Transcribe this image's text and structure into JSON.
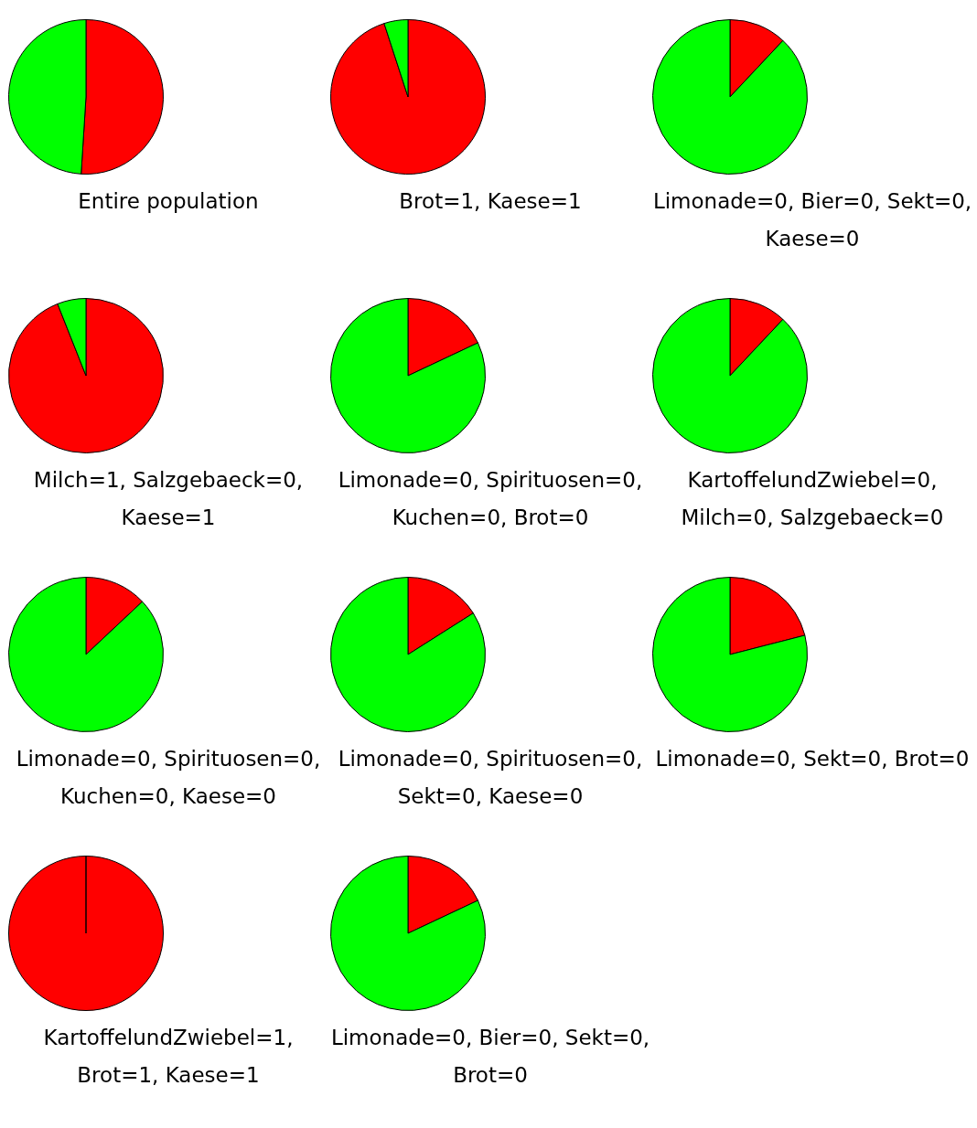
{
  "chart_data": [
    {
      "type": "pie",
      "title": "Entire population",
      "categories": [
        null,
        null
      ],
      "values": [
        51,
        49
      ],
      "colors": [
        "#ff0000",
        "#00ff00"
      ]
    },
    {
      "type": "pie",
      "title": "Brot=1, Kaese=1",
      "categories": [
        null,
        null
      ],
      "values": [
        95,
        5
      ],
      "colors": [
        "#ff0000",
        "#00ff00"
      ]
    },
    {
      "type": "pie",
      "title": "Limonade=0, Bier=0, Sekt=0, Kaese=0",
      "categories": [
        null,
        null
      ],
      "values": [
        12,
        88
      ],
      "colors": [
        "#ff0000",
        "#00ff00"
      ]
    },
    {
      "type": "pie",
      "title": "Milch=1, Salzgebaeck=0, Kaese=1",
      "categories": [
        null,
        null
      ],
      "values": [
        94,
        6
      ],
      "colors": [
        "#ff0000",
        "#00ff00"
      ]
    },
    {
      "type": "pie",
      "title": "Limonade=0, Spirituosen=0, Kuchen=0, Brot=0",
      "categories": [
        null,
        null
      ],
      "values": [
        18,
        82
      ],
      "colors": [
        "#ff0000",
        "#00ff00"
      ]
    },
    {
      "type": "pie",
      "title": "KartoffelundZwiebel=0, Milch=0, Salzgebaeck=0",
      "categories": [
        null,
        null
      ],
      "values": [
        12,
        88
      ],
      "colors": [
        "#ff0000",
        "#00ff00"
      ]
    },
    {
      "type": "pie",
      "title": "Limonade=0, Spirituosen=0, Kuchen=0, Kaese=0",
      "categories": [
        null,
        null
      ],
      "values": [
        13,
        87
      ],
      "colors": [
        "#ff0000",
        "#00ff00"
      ]
    },
    {
      "type": "pie",
      "title": "Limonade=0, Spirituosen=0, Sekt=0, Kaese=0",
      "categories": [
        null,
        null
      ],
      "values": [
        16,
        84
      ],
      "colors": [
        "#ff0000",
        "#00ff00"
      ]
    },
    {
      "type": "pie",
      "title": "Limonade=0, Sekt=0, Brot=0",
      "categories": [
        null,
        null
      ],
      "values": [
        21,
        79
      ],
      "colors": [
        "#ff0000",
        "#00ff00"
      ]
    },
    {
      "type": "pie",
      "title": "KartoffelundZwiebel=1, Brot=1, Kaese=1",
      "categories": [
        null,
        null
      ],
      "values": [
        100,
        0
      ],
      "colors": [
        "#ff0000",
        "#00ff00"
      ]
    },
    {
      "type": "pie",
      "title": "Limonade=0, Bier=0, Sekt=0, Brot=0",
      "categories": [
        null,
        null
      ],
      "values": [
        18,
        82
      ],
      "colors": [
        "#ff0000",
        "#00ff00"
      ]
    }
  ]
}
